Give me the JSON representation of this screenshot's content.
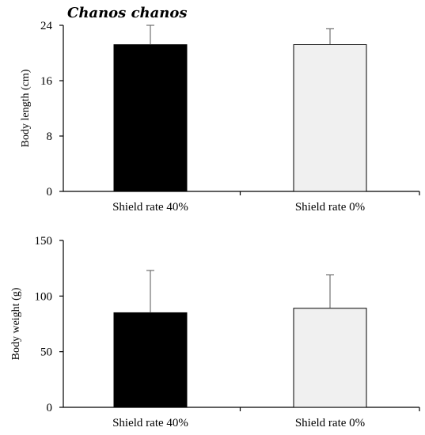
{
  "figure_title": "Chanos chanos",
  "chart_data": [
    {
      "type": "bar",
      "categories": [
        "Shield rate 40%",
        "Shield rate 0%"
      ],
      "values": [
        21.2,
        21.2
      ],
      "errors": [
        2.8,
        2.3
      ],
      "bar_colors": [
        "#000000",
        "#f0f0f0"
      ],
      "ylabel": "Body length (cm)",
      "ylim": [
        0,
        24
      ],
      "yticks": [
        0,
        8,
        16,
        24
      ],
      "grid": false
    },
    {
      "type": "bar",
      "categories": [
        "Shield rate 40%",
        "Shield rate 0%"
      ],
      "values": [
        85,
        89
      ],
      "errors": [
        38,
        30
      ],
      "bar_colors": [
        "#000000",
        "#f0f0f0"
      ],
      "ylabel": "Body weight (g)",
      "ylim": [
        0,
        150
      ],
      "yticks": [
        0,
        50,
        100,
        150
      ],
      "grid": false
    }
  ]
}
